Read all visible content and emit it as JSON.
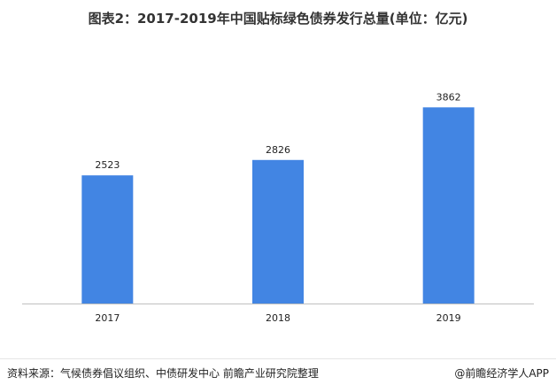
{
  "chart_data": {
    "type": "bar",
    "title": "图表2：2017-2019年中国贴标绿色债券发行总量(单位：亿元)",
    "categories": [
      "2017",
      "2018",
      "2019"
    ],
    "values": [
      2523,
      2826,
      3862
    ],
    "ylim": [
      0,
      5000
    ],
    "grid": false,
    "legend": "none",
    "colors": {
      "bar": "#4285e3",
      "axis": "#bfbfbf"
    }
  },
  "footer": {
    "source": "资料来源：气候债券倡议组织、中债研发中心 前瞻产业研究院整理",
    "brand": "@前瞻经济学人APP"
  }
}
